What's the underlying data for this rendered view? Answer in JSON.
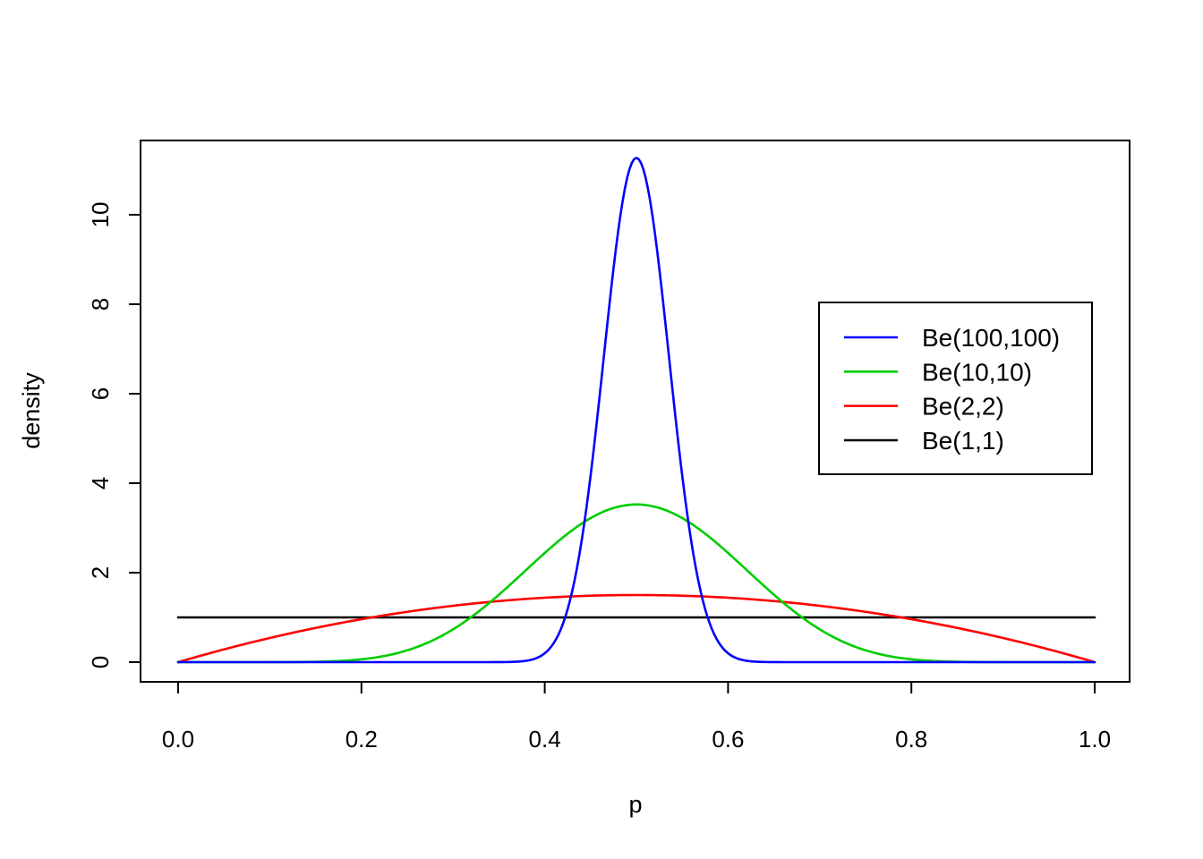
{
  "figure": {
    "background_color": "#ffffff",
    "plot_border_color": "#000000"
  },
  "chart_data": {
    "type": "line",
    "title": "",
    "xlabel": "p",
    "ylabel": "density",
    "xlim": [
      0.0,
      1.0
    ],
    "ylim": [
      0,
      11.27
    ],
    "grid": false,
    "x_ticks": [
      0.0,
      0.2,
      0.4,
      0.6,
      0.8,
      1.0
    ],
    "x_tick_labels": [
      "0.0",
      "0.2",
      "0.4",
      "0.6",
      "0.8",
      "1.0"
    ],
    "y_ticks": [
      0,
      2,
      4,
      6,
      8,
      10
    ],
    "y_tick_labels": [
      "0",
      "2",
      "4",
      "6",
      "8",
      "10"
    ],
    "legend": {
      "position": "right-center",
      "border": true,
      "entries": [
        "Be(100,100)",
        "Be(10,10)",
        "Be(2,2)",
        "Be(1,1)"
      ]
    },
    "series": [
      {
        "name": "Be(100,100)",
        "color": "#0000ff",
        "distribution": "Beta",
        "alpha": 100,
        "beta": 100,
        "peak_x": 0.5,
        "peak_density": 11.27
      },
      {
        "name": "Be(10,10)",
        "color": "#00cd00",
        "distribution": "Beta",
        "alpha": 10,
        "beta": 10,
        "peak_x": 0.5,
        "peak_density": 3.52
      },
      {
        "name": "Be(2,2)",
        "color": "#ff0000",
        "distribution": "Beta",
        "alpha": 2,
        "beta": 2,
        "peak_x": 0.5,
        "peak_density": 1.5
      },
      {
        "name": "Be(1,1)",
        "color": "#000000",
        "distribution": "Beta",
        "alpha": 1,
        "beta": 1,
        "peak_x": 0.5,
        "peak_density": 1.0
      }
    ],
    "samples": {
      "x": [
        0,
        0.05,
        0.1,
        0.15,
        0.2,
        0.25,
        0.3,
        0.35,
        0.4,
        0.45,
        0.5,
        0.55,
        0.6,
        0.65,
        0.7,
        0.75,
        0.8,
        0.85,
        0.9,
        0.95,
        1
      ],
      "be_100_100": [
        0,
        0,
        0,
        0,
        0,
        0,
        0,
        0.001,
        0.198,
        4.17,
        11.27,
        4.17,
        0.198,
        0.001,
        0,
        0,
        0,
        0,
        0,
        0,
        0
      ],
      "be_10_10": [
        0,
        0,
        0.0004,
        0.008,
        0.064,
        0.264,
        0.734,
        1.504,
        2.443,
        3.212,
        3.524,
        3.212,
        2.443,
        1.504,
        0.734,
        0.264,
        0.064,
        0.008,
        0.0004,
        0,
        0
      ],
      "be_2_2": [
        0,
        0.285,
        0.54,
        0.765,
        0.96,
        1.125,
        1.26,
        1.365,
        1.44,
        1.485,
        1.5,
        1.485,
        1.44,
        1.365,
        1.26,
        1.125,
        0.96,
        0.765,
        0.54,
        0.285,
        0
      ],
      "be_1_1": [
        1,
        1,
        1,
        1,
        1,
        1,
        1,
        1,
        1,
        1,
        1,
        1,
        1,
        1,
        1,
        1,
        1,
        1,
        1,
        1,
        1
      ]
    }
  }
}
